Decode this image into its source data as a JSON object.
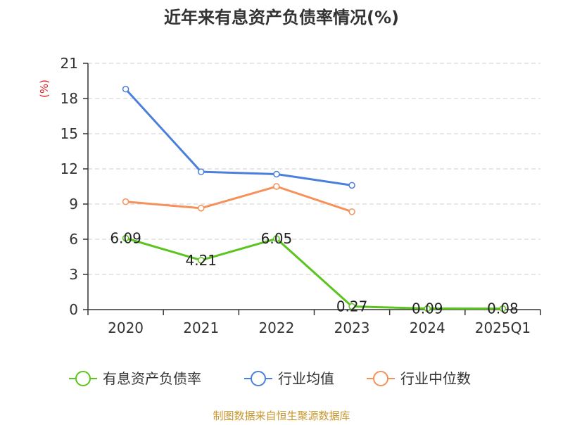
{
  "chart_data": {
    "type": "line",
    "title": "近年来有息资产负债率情况(%)",
    "ylabel": "(%)",
    "xlabel": "",
    "categories": [
      "2020",
      "2021",
      "2022",
      "2023",
      "2024",
      "2025Q1"
    ],
    "ylim": [
      0,
      21
    ],
    "yticks": [
      0,
      3,
      6,
      9,
      12,
      15,
      18,
      21
    ],
    "grid": "horizontal-dashed",
    "legend_position": "bottom",
    "series": [
      {
        "name": "有息资产负债率",
        "color": "#5bc41f",
        "values": [
          6.09,
          4.21,
          6.05,
          0.27,
          0.09,
          0.08
        ],
        "labels": [
          "6.09",
          "4.21",
          "6.05",
          "0.27",
          "0.09",
          "0.08"
        ]
      },
      {
        "name": "行业均值",
        "color": "#4a7fdc",
        "values": [
          18.8,
          11.75,
          11.55,
          10.6,
          null,
          null
        ]
      },
      {
        "name": "行业中位数",
        "color": "#f5915a",
        "values": [
          9.2,
          8.65,
          10.5,
          8.35,
          null,
          null
        ]
      }
    ]
  },
  "footer": {
    "source": "制图数据来自恒生聚源数据库",
    "source_color": "#c8962d"
  },
  "colors": {
    "title": "#333333",
    "axis": "#333333",
    "grid": "#cccccc",
    "unit": "#e02020"
  }
}
